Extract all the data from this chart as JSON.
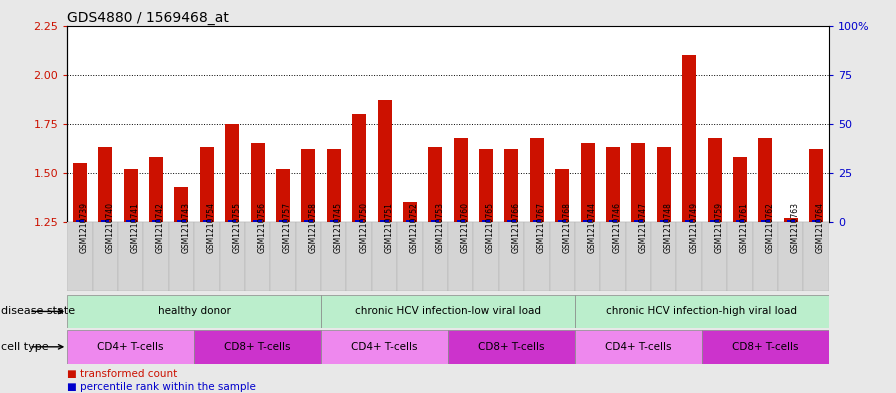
{
  "title": "GDS4880 / 1569468_at",
  "samples": [
    "GSM1210739",
    "GSM1210740",
    "GSM1210741",
    "GSM1210742",
    "GSM1210743",
    "GSM1210754",
    "GSM1210755",
    "GSM1210756",
    "GSM1210757",
    "GSM1210758",
    "GSM1210745",
    "GSM1210750",
    "GSM1210751",
    "GSM1210752",
    "GSM1210753",
    "GSM1210760",
    "GSM1210765",
    "GSM1210766",
    "GSM1210767",
    "GSM1210768",
    "GSM1210744",
    "GSM1210746",
    "GSM1210747",
    "GSM1210748",
    "GSM1210749",
    "GSM1210759",
    "GSM1210761",
    "GSM1210762",
    "GSM1210763",
    "GSM1210764"
  ],
  "transformed_count": [
    1.55,
    1.63,
    1.52,
    1.58,
    1.43,
    1.63,
    1.75,
    1.65,
    1.52,
    1.62,
    1.62,
    1.8,
    1.87,
    1.35,
    1.63,
    1.68,
    1.62,
    1.62,
    1.68,
    1.52,
    1.65,
    1.63,
    1.65,
    1.63,
    2.1,
    1.68,
    1.58,
    1.68,
    1.27,
    1.62
  ],
  "percentile_rank": [
    3,
    8,
    5,
    8,
    3,
    8,
    8,
    5,
    5,
    5,
    12,
    8,
    8,
    5,
    5,
    5,
    5,
    5,
    5,
    5,
    5,
    5,
    5,
    12,
    8,
    5,
    5,
    5,
    3,
    8
  ],
  "bar_color": "#cc1100",
  "percentile_color": "#0000cc",
  "ylim_left": [
    1.25,
    2.25
  ],
  "ylim_right": [
    0,
    100
  ],
  "yticks_left": [
    1.25,
    1.5,
    1.75,
    2.0,
    2.25
  ],
  "yticks_right": [
    0,
    25,
    50,
    75,
    100
  ],
  "ytick_labels_right": [
    "0",
    "25",
    "50",
    "75",
    "100%"
  ],
  "grid_values": [
    1.5,
    1.75,
    2.0
  ],
  "disease_groups": [
    {
      "label": "healthy donor",
      "start": 0,
      "end": 9
    },
    {
      "label": "chronic HCV infection-low viral load",
      "start": 10,
      "end": 19
    },
    {
      "label": "chronic HCV infection-high viral load",
      "start": 20,
      "end": 29
    }
  ],
  "cell_type_groups": [
    {
      "label": "CD4+ T-cells",
      "start": 0,
      "end": 4,
      "color": "#ee88ee"
    },
    {
      "label": "CD8+ T-cells",
      "start": 5,
      "end": 9,
      "color": "#dd44dd"
    },
    {
      "label": "CD4+ T-cells",
      "start": 10,
      "end": 14,
      "color": "#ee88ee"
    },
    {
      "label": "CD8+ T-cells",
      "start": 15,
      "end": 19,
      "color": "#dd44dd"
    },
    {
      "label": "CD4+ T-cells",
      "start": 20,
      "end": 24,
      "color": "#ee88ee"
    },
    {
      "label": "CD8+ T-cells",
      "start": 25,
      "end": 29,
      "color": "#dd44dd"
    }
  ],
  "disease_state_label": "disease state",
  "cell_type_label": "cell type",
  "legend_items": [
    {
      "label": "transformed count",
      "color": "#cc1100"
    },
    {
      "label": "percentile rank within the sample",
      "color": "#0000cc"
    }
  ],
  "bg_color": "#e8e8e8",
  "plot_bg_color": "#ffffff",
  "xticklabel_bg": "#d0d0d0",
  "disease_row_color": "#bbeecc",
  "cd4_color": "#ee88ee",
  "cd8_color": "#cc33cc",
  "title_fontsize": 10,
  "bar_width": 0.55
}
